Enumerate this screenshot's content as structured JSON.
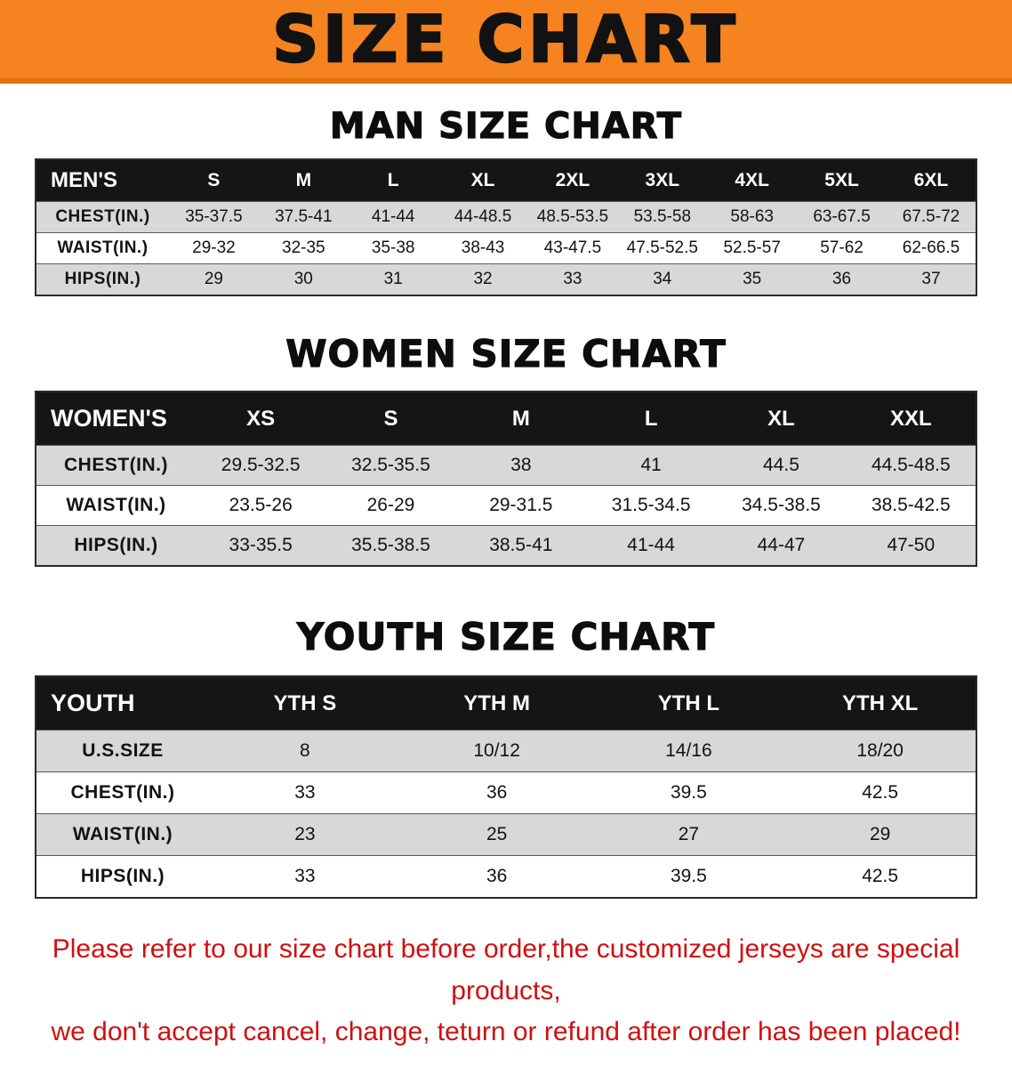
{
  "banner": {
    "title": "SIZE CHART"
  },
  "colors": {
    "banner_bg": "#f5831f",
    "header_bg": "#151515",
    "row_alt": "#d8d8d8",
    "footer_red": "#cf1010"
  },
  "men": {
    "heading": "MAN SIZE CHART",
    "table": {
      "header": [
        "MEN'S",
        "S",
        "M",
        "L",
        "XL",
        "2XL",
        "3XL",
        "4XL",
        "5XL",
        "6XL"
      ],
      "rows": [
        {
          "label": "CHEST(IN.)",
          "values": [
            "35-37.5",
            "37.5-41",
            "41-44",
            "44-48.5",
            "48.5-53.5",
            "53.5-58",
            "58-63",
            "63-67.5",
            "67.5-72"
          ]
        },
        {
          "label": "WAIST(IN.)",
          "values": [
            "29-32",
            "32-35",
            "35-38",
            "38-43",
            "43-47.5",
            "47.5-52.5",
            "52.5-57",
            "57-62",
            "62-66.5"
          ]
        },
        {
          "label": "HIPS(IN.)",
          "values": [
            "29",
            "30",
            "31",
            "32",
            "33",
            "34",
            "35",
            "36",
            "37"
          ]
        }
      ]
    }
  },
  "women": {
    "heading": "WOMEN SIZE CHART",
    "table": {
      "header": [
        "WOMEN'S",
        "XS",
        "S",
        "M",
        "L",
        "XL",
        "XXL"
      ],
      "rows": [
        {
          "label": "CHEST(IN.)",
          "values": [
            "29.5-32.5",
            "32.5-35.5",
            "38",
            "41",
            "44.5",
            "44.5-48.5"
          ]
        },
        {
          "label": "WAIST(IN.)",
          "values": [
            "23.5-26",
            "26-29",
            "29-31.5",
            "31.5-34.5",
            "34.5-38.5",
            "38.5-42.5"
          ]
        },
        {
          "label": "HIPS(IN.)",
          "values": [
            "33-35.5",
            "35.5-38.5",
            "38.5-41",
            "41-44",
            "44-47",
            "47-50"
          ]
        }
      ]
    }
  },
  "youth": {
    "heading": "YOUTH SIZE CHART",
    "table": {
      "header": [
        "YOUTH",
        "YTH S",
        "YTH M",
        "YTH L",
        "YTH XL"
      ],
      "rows": [
        {
          "label": "U.S.SIZE",
          "values": [
            "8",
            "10/12",
            "14/16",
            "18/20"
          ]
        },
        {
          "label": "CHEST(IN.)",
          "values": [
            "33",
            "36",
            "39.5",
            "42.5"
          ]
        },
        {
          "label": "WAIST(IN.)",
          "values": [
            "23",
            "25",
            "27",
            "29"
          ]
        },
        {
          "label": "HIPS(IN.)",
          "values": [
            "33",
            "36",
            "39.5",
            "42.5"
          ]
        }
      ]
    }
  },
  "footer": {
    "line1": "Please refer to our size chart before order,the customized jerseys are special products,",
    "line2": "we don't accept cancel, change, teturn or refund after order has been placed!"
  }
}
